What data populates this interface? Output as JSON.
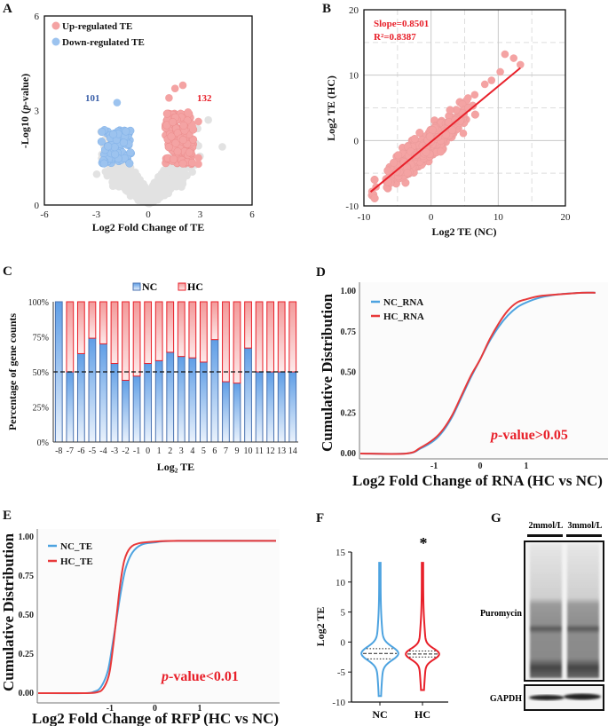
{
  "panels": {
    "A": "A",
    "B": "B",
    "C": "C",
    "D": "D",
    "E": "E",
    "F": "F",
    "G": "G"
  },
  "colors": {
    "up": "#f4a3a3",
    "down": "#9cc3ef",
    "ns": "#e2e2e2",
    "nc_line": "#4da3e0",
    "hc_line": "#e8393a",
    "accent_red": "#e8202a",
    "nc_bar": "#6fa8e8",
    "hc_bar": "#f4a0a0"
  },
  "chart_data": [
    {
      "panel": "A",
      "type": "scatter",
      "xlabel": "Log2 Fold Change of TE",
      "ylabel": "-Log10 (p-value)",
      "xlim": [
        -6,
        6
      ],
      "ylim": [
        0,
        6
      ],
      "xticks": [
        "-6",
        "-3",
        "0",
        "3",
        "6"
      ],
      "yticks": [
        "0",
        "3",
        "6"
      ],
      "legend": [
        "Up-regulated TE",
        "Down-regulated TE"
      ],
      "legend_position": "top-left",
      "annotations": {
        "down_count": "101",
        "up_count": "132"
      }
    },
    {
      "panel": "B",
      "type": "scatter",
      "xlabel": "Log2 TE (NC)",
      "ylabel": "Log2 TE (HC)",
      "xlim": [
        -10,
        20
      ],
      "ylim": [
        -10,
        20
      ],
      "xticks": [
        "-10",
        "0",
        "10",
        "20"
      ],
      "yticks": [
        "-10",
        "0",
        "10",
        "20"
      ],
      "grid": true,
      "annotations": {
        "slope": "Slope=0.8501",
        "r2": "R²=0.8387"
      },
      "fit": {
        "slope": 0.8501,
        "x_range": [
          -9,
          13.3
        ]
      }
    },
    {
      "panel": "C",
      "type": "bar",
      "stacked": true,
      "ylabel": "Percentage of gene counts",
      "xlabel": "Log₂ TE",
      "categories": [
        "-8",
        "-7",
        "-6",
        "-5",
        "-4",
        "-3",
        "-2",
        "-1",
        "0",
        "1",
        "2",
        "3",
        "4",
        "5",
        "6",
        "7",
        "9",
        "10",
        "11",
        "12",
        "13",
        "14"
      ],
      "series": [
        {
          "name": "NC",
          "values": [
            100,
            50,
            63,
            74,
            70,
            56,
            44,
            47,
            56,
            58,
            64,
            61,
            60,
            57,
            73,
            43,
            42,
            67,
            50,
            50,
            50,
            50
          ]
        },
        {
          "name": "HC",
          "values": [
            0,
            50,
            37,
            26,
            30,
            44,
            56,
            53,
            44,
            42,
            36,
            39,
            40,
            43,
            27,
            57,
            58,
            33,
            50,
            50,
            50,
            50
          ]
        }
      ],
      "yticks": [
        "0%",
        "25%",
        "50%",
        "75%",
        "100%"
      ],
      "ylim": [
        0,
        100
      ],
      "reference_line": 50,
      "legend_position": "top"
    },
    {
      "panel": "D",
      "type": "line",
      "xlabel": "Log2 Fold Change of RNA (HC vs NC)",
      "ylabel": "Cumulative Distribution",
      "xticks": [
        "-1",
        "0",
        "1"
      ],
      "yticks": [
        "0.00",
        "0.25",
        "0.50",
        "0.75",
        "1.00"
      ],
      "xlim": [
        -2.6,
        2.6
      ],
      "ylim": [
        0,
        1
      ],
      "annotation": "p-value>0.05",
      "annotation_italic": "p",
      "annotation_rest": "-value>0.05",
      "legend_position": "top-left",
      "series": [
        {
          "name": "NC_RNA",
          "points": [
            [
              -2.6,
              0
            ],
            [
              -1.6,
              0
            ],
            [
              -1.3,
              0.03
            ],
            [
              -1,
              0.08
            ],
            [
              -0.8,
              0.14
            ],
            [
              -0.6,
              0.23
            ],
            [
              -0.4,
              0.35
            ],
            [
              -0.2,
              0.47
            ],
            [
              0,
              0.58
            ],
            [
              0.2,
              0.69
            ],
            [
              0.4,
              0.78
            ],
            [
              0.6,
              0.85
            ],
            [
              0.8,
              0.9
            ],
            [
              1,
              0.93
            ],
            [
              1.3,
              0.96
            ],
            [
              1.7,
              0.98
            ],
            [
              2.2,
              0.99
            ],
            [
              2.5,
              0.99
            ]
          ]
        },
        {
          "name": "HC_RNA",
          "points": [
            [
              -2.6,
              0
            ],
            [
              -1.6,
              0
            ],
            [
              -1.3,
              0.035
            ],
            [
              -1,
              0.09
            ],
            [
              -0.8,
              0.15
            ],
            [
              -0.6,
              0.24
            ],
            [
              -0.4,
              0.36
            ],
            [
              -0.2,
              0.48
            ],
            [
              0,
              0.58
            ],
            [
              0.2,
              0.7
            ],
            [
              0.4,
              0.8
            ],
            [
              0.6,
              0.88
            ],
            [
              0.8,
              0.93
            ],
            [
              1,
              0.95
            ],
            [
              1.3,
              0.97
            ],
            [
              1.7,
              0.98
            ],
            [
              2.2,
              0.99
            ],
            [
              2.5,
              0.99
            ]
          ]
        }
      ]
    },
    {
      "panel": "E",
      "type": "line",
      "xlabel": "Log2 Fold Change of RFP (HC vs NC)",
      "ylabel": "Cumulative Distribution",
      "xticks": [
        "-1",
        "0",
        "1"
      ],
      "yticks": [
        "0.00",
        "0.25",
        "0.50",
        "0.75",
        "1.00"
      ],
      "xlim": [
        -2.6,
        2.7
      ],
      "ylim": [
        0,
        1
      ],
      "annotation": "p-value<0.01",
      "annotation_italic": "p",
      "annotation_rest": "-value<0.01",
      "legend_position": "top-left",
      "series": [
        {
          "name": "NC_TE",
          "points": [
            [
              -2.6,
              0
            ],
            [
              -1.6,
              0
            ],
            [
              -1.35,
              0.01
            ],
            [
              -1.2,
              0.04
            ],
            [
              -1.05,
              0.14
            ],
            [
              -0.95,
              0.3
            ],
            [
              -0.85,
              0.48
            ],
            [
              -0.75,
              0.66
            ],
            [
              -0.65,
              0.8
            ],
            [
              -0.5,
              0.9
            ],
            [
              -0.3,
              0.95
            ],
            [
              0,
              0.965
            ],
            [
              0.5,
              0.975
            ],
            [
              2.7,
              0.975
            ]
          ]
        },
        {
          "name": "HC_TE",
          "points": [
            [
              -2.6,
              0
            ],
            [
              -1.6,
              0
            ],
            [
              -1.3,
              0.005
            ],
            [
              -1.15,
              0.03
            ],
            [
              -1.02,
              0.12
            ],
            [
              -0.93,
              0.3
            ],
            [
              -0.85,
              0.5
            ],
            [
              -0.77,
              0.7
            ],
            [
              -0.68,
              0.85
            ],
            [
              -0.55,
              0.93
            ],
            [
              -0.35,
              0.96
            ],
            [
              0,
              0.97
            ],
            [
              0.5,
              0.975
            ],
            [
              2.7,
              0.975
            ]
          ]
        }
      ]
    },
    {
      "panel": "F",
      "type": "violin",
      "ylabel": "Log2 TE",
      "categories": [
        "NC",
        "HC"
      ],
      "yticks": [
        "-10",
        "-5",
        "0",
        "5",
        "10",
        "15"
      ],
      "ylim": [
        -10,
        15
      ],
      "significance": "*",
      "series": [
        {
          "name": "NC",
          "min": -9,
          "max": 13.2,
          "q1": -2.8,
          "median": -1.9,
          "q3": -1.1
        },
        {
          "name": "HC",
          "min": -8,
          "max": 13.2,
          "q1": -2.5,
          "median": -2.0,
          "q3": -1.5
        }
      ]
    }
  ],
  "blot": {
    "lanes": [
      "2mmol/L",
      "3mmol/L"
    ],
    "bands": [
      "Puromycin",
      "GAPDH"
    ]
  }
}
